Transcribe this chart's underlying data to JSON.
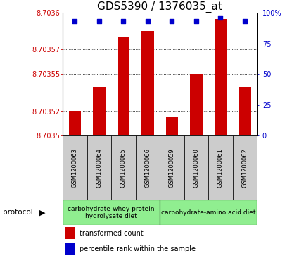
{
  "title": "GDS5390 / 1376035_at",
  "samples": [
    "GSM1200063",
    "GSM1200064",
    "GSM1200065",
    "GSM1200066",
    "GSM1200059",
    "GSM1200060",
    "GSM1200061",
    "GSM1200062"
  ],
  "red_values": [
    8.70352,
    8.70354,
    8.70358,
    8.703585,
    8.703515,
    8.70355,
    8.703595,
    8.70354
  ],
  "blue_values": [
    93,
    93,
    93,
    93,
    93,
    93,
    96,
    93
  ],
  "ylim_left": [
    8.7035,
    8.7036
  ],
  "ylim_right": [
    0,
    100
  ],
  "yticks_left": [
    8.7035,
    8.70352,
    8.70355,
    8.70357,
    8.7036
  ],
  "ytick_labels_left": [
    "8.7035",
    "8.70352",
    "8.70355",
    "8.70357",
    "8.7036"
  ],
  "yticks_right": [
    0,
    25,
    50,
    75,
    100
  ],
  "ytick_labels_right": [
    "0",
    "25",
    "50",
    "75",
    "100%"
  ],
  "group1_samples": [
    0,
    1,
    2,
    3
  ],
  "group2_samples": [
    4,
    5,
    6,
    7
  ],
  "group1_label": "carbohydrate-whey protein\nhydrolysate diet",
  "group2_label": "carbohydrate-amino acid diet",
  "group1_color": "#90ee90",
  "group2_color": "#90ee90",
  "bar_color": "#cc0000",
  "dot_color": "#0000cc",
  "baseline": 8.7035,
  "legend_red": "transformed count",
  "legend_blue": "percentile rank within the sample",
  "protocol_label": "protocol",
  "title_fontsize": 11,
  "axis_label_color_left": "#cc0000",
  "axis_label_color_right": "#0000cc",
  "bg_xtick": "#cccccc",
  "bar_width": 0.5
}
